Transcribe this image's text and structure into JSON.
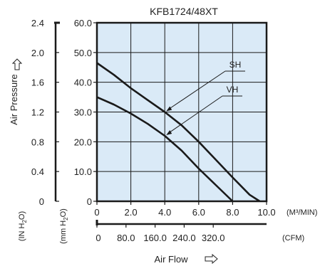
{
  "chart_data": {
    "type": "line",
    "title": "KFB1724/48XT",
    "ylabel": "Air Pressure",
    "xlabel": "Air Flow",
    "primary_x": {
      "unit": "(M³/MIN)",
      "range": [
        0,
        10
      ],
      "ticks": [
        "0",
        "2.0",
        "4.0",
        "6.0",
        "8.0",
        "10.0"
      ]
    },
    "secondary_x": {
      "unit": "(CFM)",
      "ticks": [
        "0",
        "80.0",
        "160.0",
        "240.0",
        "320.0"
      ]
    },
    "primary_y": {
      "unit": "(mm H2O)",
      "range": [
        0,
        60
      ],
      "ticks": [
        "0",
        "10.0",
        "20.0",
        "30.0",
        "40.0",
        "50.0",
        "60.0"
      ]
    },
    "secondary_y": {
      "unit": "(IN H2O)",
      "ticks": [
        "0",
        "0.4",
        "0.8",
        "1.2",
        "1.6",
        "2.0",
        "2.4"
      ]
    },
    "grid": true,
    "background_color": "#daeaf7",
    "line_color": "#1a1a1a",
    "series": [
      {
        "name": "SH",
        "x": [
          0,
          1,
          2,
          3,
          4,
          5,
          6,
          7,
          8,
          9,
          9.6
        ],
        "y": [
          46.5,
          42.5,
          38.0,
          34.0,
          30.0,
          25.5,
          20.0,
          14.0,
          8.0,
          2.2,
          0
        ]
      },
      {
        "name": "VH",
        "x": [
          0,
          1,
          2,
          3,
          4,
          5,
          6,
          7,
          8.0
        ],
        "y": [
          35.0,
          32.5,
          29.5,
          26.0,
          22.0,
          17.0,
          11.0,
          5.5,
          0
        ]
      }
    ]
  }
}
